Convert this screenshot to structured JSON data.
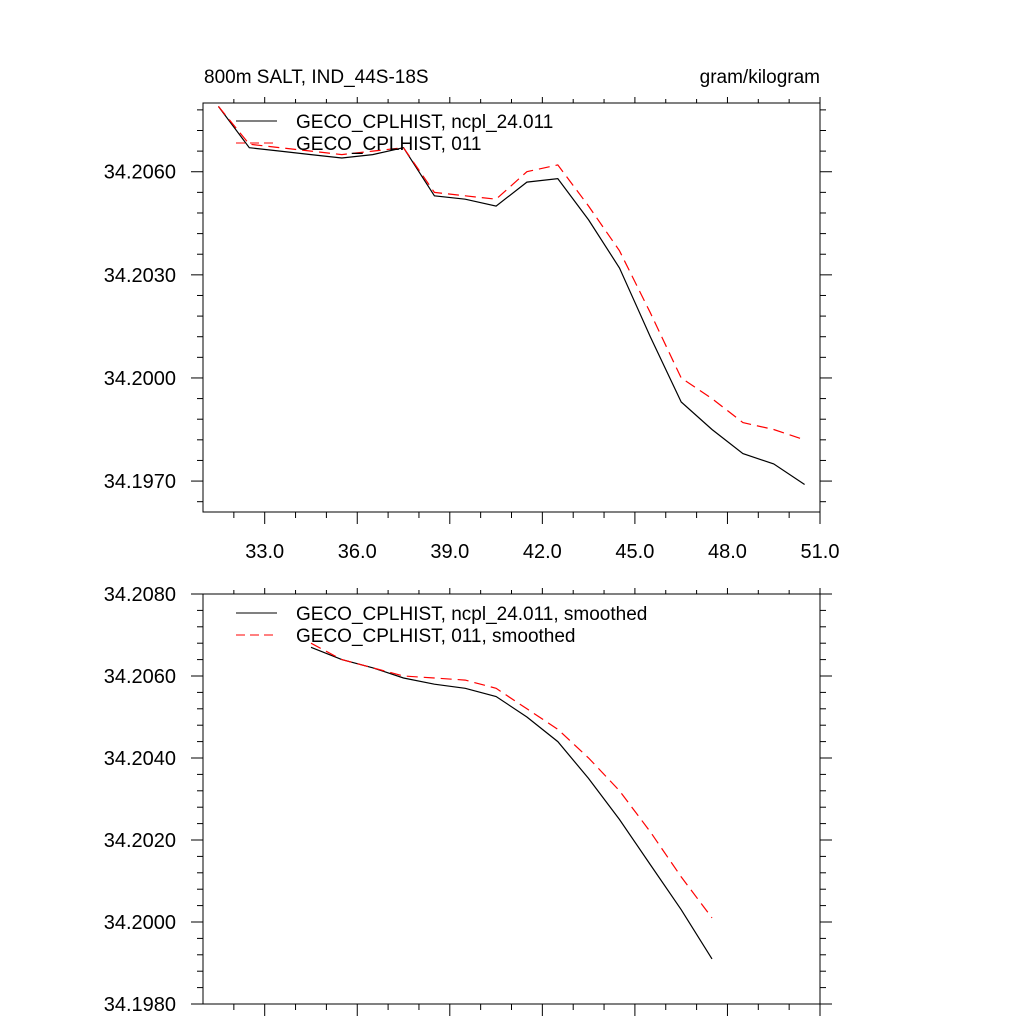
{
  "chart_data": [
    {
      "type": "line",
      "title_left": "800m SALT, IND_44S-18S",
      "title_right": "gram/kilogram",
      "xlim": [
        31.0,
        51.0
      ],
      "ylim": [
        34.1961,
        34.208
      ],
      "xticks": [
        33.0,
        36.0,
        39.0,
        42.0,
        45.0,
        48.0,
        51.0
      ],
      "xtick_labels": [
        "33.0",
        "36.0",
        "39.0",
        "42.0",
        "45.0",
        "48.0",
        "51.0"
      ],
      "yticks": [
        34.197,
        34.2,
        34.203,
        34.206
      ],
      "ytick_labels": [
        "34.1970",
        "34.2000",
        "34.2030",
        "34.2060"
      ],
      "series": [
        {
          "name": "GECO_CPLHIST, ncpl_24.011",
          "color": "#000000",
          "dash": "solid",
          "x": [
            31.5,
            32.5,
            33.5,
            34.5,
            35.5,
            36.5,
            37.5,
            38.5,
            39.5,
            40.5,
            41.5,
            42.5,
            43.5,
            44.5,
            45.5,
            46.5,
            47.5,
            48.5,
            49.5,
            50.5
          ],
          "y": [
            34.2079,
            34.2067,
            34.2066,
            34.2065,
            34.2064,
            34.2065,
            34.2067,
            34.2053,
            34.2052,
            34.205,
            34.2057,
            34.2058,
            34.2046,
            34.2032,
            34.2012,
            34.1993,
            34.1985,
            34.1978,
            34.1975,
            34.1969
          ]
        },
        {
          "name": "GECO_CPLHIST, 011",
          "color": "#ff0000",
          "dash": "dashed",
          "x": [
            31.5,
            32.5,
            33.5,
            34.5,
            35.5,
            36.5,
            37.5,
            38.5,
            39.5,
            40.5,
            41.5,
            42.5,
            43.5,
            44.5,
            45.5,
            46.5,
            47.5,
            48.5,
            49.5,
            50.5
          ],
          "y": [
            34.2079,
            34.2068,
            34.2067,
            34.2066,
            34.2065,
            34.2066,
            34.2067,
            34.2054,
            34.2053,
            34.2052,
            34.206,
            34.2062,
            34.205,
            34.2037,
            34.2019,
            34.2,
            34.1994,
            34.1987,
            34.1985,
            34.1982
          ]
        }
      ]
    },
    {
      "type": "line",
      "xlim": [
        31.0,
        51.0
      ],
      "ylim": [
        34.198,
        34.208
      ],
      "xticks": [
        33.0,
        36.0,
        39.0,
        42.0,
        45.0,
        48.0,
        51.0
      ],
      "yticks": [
        34.198,
        34.2,
        34.202,
        34.204,
        34.206,
        34.208
      ],
      "ytick_labels": [
        "34.1980",
        "34.2000",
        "34.2020",
        "34.2040",
        "34.2060",
        "34.2080"
      ],
      "series": [
        {
          "name": "GECO_CPLHIST, ncpl_24.011, smoothed",
          "color": "#000000",
          "dash": "solid",
          "x": [
            34.5,
            35.5,
            36.5,
            37.5,
            38.5,
            39.5,
            40.5,
            41.5,
            42.5,
            43.5,
            44.5,
            45.5,
            46.5,
            47.5
          ],
          "y": [
            34.2067,
            34.2064,
            34.2062,
            34.20595,
            34.2058,
            34.2057,
            34.2055,
            34.205,
            34.2044,
            34.2035,
            34.2025,
            34.2014,
            34.2003,
            34.1991
          ]
        },
        {
          "name": "GECO_CPLHIST, 011, smoothed",
          "color": "#ff0000",
          "dash": "dashed",
          "x": [
            34.5,
            35.5,
            36.5,
            37.5,
            38.5,
            39.5,
            40.5,
            41.5,
            42.5,
            43.5,
            44.5,
            45.5,
            46.5,
            47.5
          ],
          "y": [
            34.2068,
            34.2064,
            34.2062,
            34.206,
            34.20595,
            34.2059,
            34.2057,
            34.2052,
            34.2047,
            34.204,
            34.2032,
            34.2022,
            34.2011,
            34.2001
          ]
        }
      ]
    }
  ]
}
